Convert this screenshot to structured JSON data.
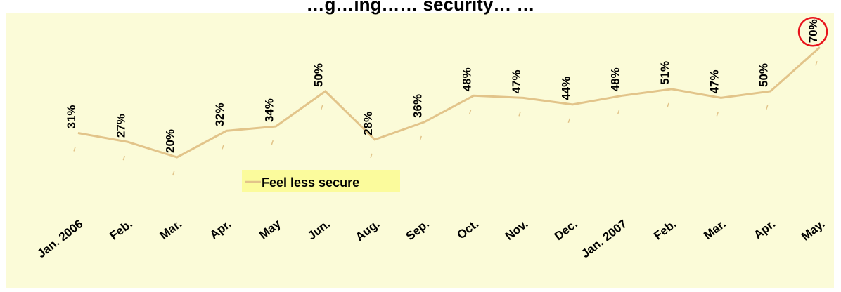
{
  "chart_data": {
    "type": "line",
    "title": "…g…ing…… security… …",
    "categories": [
      "Jan. 2006",
      "Feb.",
      "Mar.",
      "Apr.",
      "May",
      "Jun.",
      "Aug.",
      "Sep.",
      "Oct.",
      "Nov.",
      "Dec.",
      "Jan. 2007",
      "Feb.",
      "Mar.",
      "Apr.",
      "May."
    ],
    "series": [
      {
        "name": "Feel less secure",
        "values": [
          31,
          27,
          20,
          32,
          34,
          50,
          28,
          36,
          48,
          47,
          44,
          48,
          51,
          47,
          50,
          70
        ],
        "labels": [
          "31%",
          "27%",
          "20%",
          "32%",
          "34%",
          "50%",
          "28%",
          "36%",
          "48%",
          "47%",
          "44%",
          "48%",
          "51%",
          "47%",
          "50%",
          "70%"
        ]
      }
    ],
    "highlighted_point": "70%",
    "ylim": [
      0,
      80
    ],
    "grid": false,
    "legend": "center",
    "colors": {
      "background": "#fbfbd8",
      "line": "#e2c48a",
      "legend_bg": "#fbfb9c",
      "highlight": "#e8141c"
    }
  }
}
